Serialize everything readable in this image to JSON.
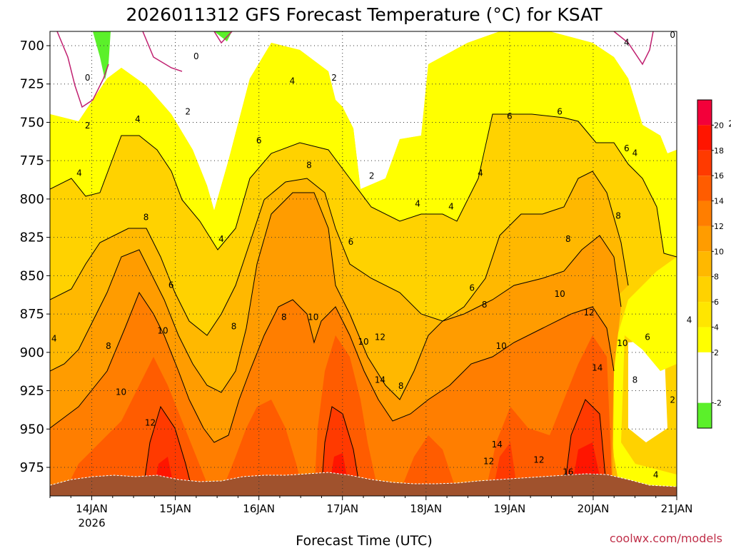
{
  "chart_data": {
    "type": "heatmap",
    "title": "2026011312 GFS Forecast Temperature (°C) for KSAT",
    "xlabel": "Forecast Time (UTC)",
    "ylabel": "",
    "credit": "coolwx.com/models",
    "x_range_days": [
      -0.5,
      7.0
    ],
    "x_ticks": [
      {
        "day": 0,
        "label": "14JAN",
        "sub": "2026"
      },
      {
        "day": 1,
        "label": "15JAN",
        "sub": ""
      },
      {
        "day": 2,
        "label": "16JAN",
        "sub": ""
      },
      {
        "day": 3,
        "label": "17JAN",
        "sub": ""
      },
      {
        "day": 4,
        "label": "18JAN",
        "sub": ""
      },
      {
        "day": 5,
        "label": "19JAN",
        "sub": ""
      },
      {
        "day": 6,
        "label": "20JAN",
        "sub": ""
      },
      {
        "day": 7,
        "label": "21JAN",
        "sub": ""
      }
    ],
    "y_range_hpa": [
      690,
      1000
    ],
    "y_ticks": [
      "700",
      "725",
      "750",
      "775",
      "800",
      "825",
      "850",
      "875",
      "900",
      "925",
      "950",
      "975"
    ],
    "colorbar": {
      "levels": [
        -4,
        -2,
        0,
        2,
        4,
        6,
        8,
        10,
        12,
        14,
        16,
        18,
        20,
        22
      ],
      "labels": [
        "-2",
        "2",
        "4",
        "6",
        "8",
        "10",
        "12",
        "14",
        "16",
        "18",
        "20"
      ],
      "colors": [
        "#5bf02a",
        "#ffffff",
        "#ffffff",
        "#ffff00",
        "#ffe600",
        "#ffd200",
        "#ffb800",
        "#ff9c00",
        "#ff7e00",
        "#ff5c00",
        "#ff3a00",
        "#ff1500",
        "#f3003a"
      ]
    },
    "contour_labels": [
      {
        "day": -0.05,
        "p": 721,
        "text": "0"
      },
      {
        "day": 1.25,
        "p": 707,
        "text": "0"
      },
      {
        "day": 6.95,
        "p": 693,
        "text": "0"
      },
      {
        "day": -0.05,
        "p": 752,
        "text": "2"
      },
      {
        "day": 1.15,
        "p": 743,
        "text": "2"
      },
      {
        "day": 2.9,
        "p": 721,
        "text": "2"
      },
      {
        "day": 3.35,
        "p": 785,
        "text": "2"
      },
      {
        "day": 7.65,
        "p": 751,
        "text": "2"
      },
      {
        "day": 6.95,
        "p": 931,
        "text": "2"
      },
      {
        "day": -0.15,
        "p": 783,
        "text": "4"
      },
      {
        "day": 0.55,
        "p": 748,
        "text": "4"
      },
      {
        "day": 1.55,
        "p": 826,
        "text": "4"
      },
      {
        "day": 2.4,
        "p": 723,
        "text": "4"
      },
      {
        "day": 3.9,
        "p": 803,
        "text": "4"
      },
      {
        "day": 4.3,
        "p": 805,
        "text": "4"
      },
      {
        "day": 4.65,
        "p": 783,
        "text": "4"
      },
      {
        "day": 6.4,
        "p": 698,
        "text": "4"
      },
      {
        "day": 6.5,
        "p": 770,
        "text": "4"
      },
      {
        "day": 6.75,
        "p": 980,
        "text": "4"
      },
      {
        "day": 7.15,
        "p": 879,
        "text": "4"
      },
      {
        "day": -0.45,
        "p": 891,
        "text": "4"
      },
      {
        "day": 0.95,
        "p": 856,
        "text": "6"
      },
      {
        "day": 2.0,
        "p": 762,
        "text": "6"
      },
      {
        "day": 3.1,
        "p": 828,
        "text": "6"
      },
      {
        "day": 4.55,
        "p": 858,
        "text": "6"
      },
      {
        "day": 5.0,
        "p": 746,
        "text": "6"
      },
      {
        "day": 5.6,
        "p": 743,
        "text": "6"
      },
      {
        "day": 6.4,
        "p": 767,
        "text": "6"
      },
      {
        "day": 6.65,
        "p": 890,
        "text": "6"
      },
      {
        "day": 0.2,
        "p": 896,
        "text": "8"
      },
      {
        "day": 0.65,
        "p": 812,
        "text": "8"
      },
      {
        "day": 1.7,
        "p": 883,
        "text": "8"
      },
      {
        "day": 2.3,
        "p": 877,
        "text": "8"
      },
      {
        "day": 2.6,
        "p": 778,
        "text": "8"
      },
      {
        "day": 3.7,
        "p": 922,
        "text": "8"
      },
      {
        "day": 4.7,
        "p": 869,
        "text": "8"
      },
      {
        "day": 5.7,
        "p": 826,
        "text": "8"
      },
      {
        "day": 6.3,
        "p": 811,
        "text": "8"
      },
      {
        "day": 6.5,
        "p": 918,
        "text": "8"
      },
      {
        "day": 0.35,
        "p": 926,
        "text": "10"
      },
      {
        "day": 0.85,
        "p": 886,
        "text": "10"
      },
      {
        "day": 2.65,
        "p": 877,
        "text": "10"
      },
      {
        "day": 3.25,
        "p": 893,
        "text": "10"
      },
      {
        "day": 4.9,
        "p": 896,
        "text": "10"
      },
      {
        "day": 5.6,
        "p": 862,
        "text": "10"
      },
      {
        "day": 6.35,
        "p": 894,
        "text": "10"
      },
      {
        "day": 0.7,
        "p": 946,
        "text": "12"
      },
      {
        "day": 3.45,
        "p": 890,
        "text": "12"
      },
      {
        "day": 4.75,
        "p": 971,
        "text": "12"
      },
      {
        "day": 5.35,
        "p": 970,
        "text": "12"
      },
      {
        "day": 5.95,
        "p": 874,
        "text": "12"
      },
      {
        "day": 3.45,
        "p": 918,
        "text": "14"
      },
      {
        "day": 4.85,
        "p": 960,
        "text": "14"
      },
      {
        "day": 6.05,
        "p": 910,
        "text": "14"
      },
      {
        "day": 5.7,
        "p": 978,
        "text": "16"
      }
    ]
  }
}
